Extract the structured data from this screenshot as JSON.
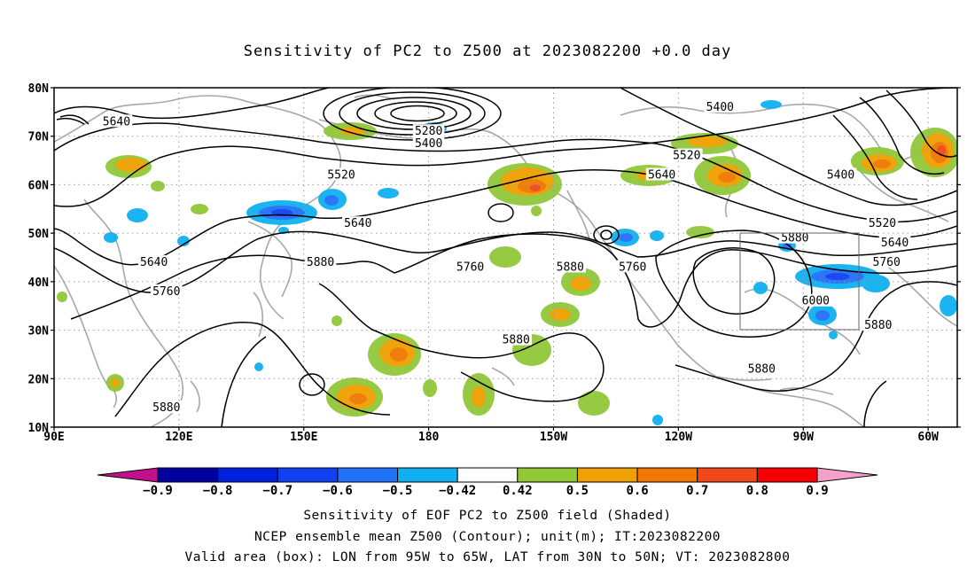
{
  "title": "Sensitivity of PC2 to Z500 at 2023082200 +0.0 day",
  "footer": {
    "line1": "Sensitivity of EOF PC2 to Z500 field (Shaded)",
    "line2": "NCEP ensemble mean Z500 (Contour); unit(m); IT:2023082200",
    "line3": "Valid area (box): LON from 95W to 65W, LAT from 30N to 50N; VT: 2023082800"
  },
  "axes": {
    "lat_labels": [
      "80N",
      "70N",
      "60N",
      "50N",
      "40N",
      "30N",
      "20N",
      "10N"
    ],
    "lat_values": [
      80,
      70,
      60,
      50,
      40,
      30,
      20,
      10
    ],
    "lon_labels": [
      "90E",
      "120E",
      "150E",
      "180",
      "150W",
      "120W",
      "90W",
      "60W"
    ],
    "lon_values": [
      90,
      120,
      150,
      180,
      210,
      240,
      270,
      300
    ],
    "lon_range": [
      90,
      307
    ],
    "lat_range": [
      10,
      80
    ]
  },
  "colorbar": {
    "labels": [
      "-0.9",
      "-0.8",
      "-0.7",
      "-0.6",
      "-0.5",
      "-0.42",
      "0.42",
      "0.5",
      "0.6",
      "0.7",
      "0.8",
      "0.9"
    ],
    "colors": [
      "#0000a0",
      "#0020e0",
      "#1040f0",
      "#2070f8",
      "#10b0f0",
      "#ffffff",
      "#90c838",
      "#f0a000",
      "#f07800",
      "#f04818",
      "#f80000"
    ],
    "low_extend_color": "#c0108c",
    "high_extend_color": "#f4a0c8"
  },
  "valid_box": {
    "lon_from": "95W",
    "lon_to": "65W",
    "lat_from": "30N",
    "lat_to": "50N"
  },
  "contour_labels": [
    {
      "text": "5640",
      "lon": 105,
      "lat": 73
    },
    {
      "text": "5280",
      "lon": 180,
      "lat": 71
    },
    {
      "text": "5400",
      "lon": 180,
      "lat": 68.5
    },
    {
      "text": "5400",
      "lon": 250,
      "lat": 76
    },
    {
      "text": "5520",
      "lon": 159,
      "lat": 62
    },
    {
      "text": "5520",
      "lon": 242,
      "lat": 66
    },
    {
      "text": "5640",
      "lon": 236,
      "lat": 62
    },
    {
      "text": "5400",
      "lon": 279,
      "lat": 62
    },
    {
      "text": "5640",
      "lon": 163,
      "lat": 52
    },
    {
      "text": "5520",
      "lon": 289,
      "lat": 52
    },
    {
      "text": "5640",
      "lon": 292,
      "lat": 48
    },
    {
      "text": "5880",
      "lon": 268,
      "lat": 49
    },
    {
      "text": "5760",
      "lon": 290,
      "lat": 44
    },
    {
      "text": "5640",
      "lon": 114,
      "lat": 44
    },
    {
      "text": "5880",
      "lon": 154,
      "lat": 44
    },
    {
      "text": "5760",
      "lon": 190,
      "lat": 43
    },
    {
      "text": "5880",
      "lon": 214,
      "lat": 43
    },
    {
      "text": "5760",
      "lon": 229,
      "lat": 43
    },
    {
      "text": "5760",
      "lon": 117,
      "lat": 38
    },
    {
      "text": "6000",
      "lon": 273,
      "lat": 36
    },
    {
      "text": "5880",
      "lon": 288,
      "lat": 31
    },
    {
      "text": "5880",
      "lon": 201,
      "lat": 28
    },
    {
      "text": "5880",
      "lon": 260,
      "lat": 22
    },
    {
      "text": "5880",
      "lon": 117,
      "lat": 14
    }
  ]
}
